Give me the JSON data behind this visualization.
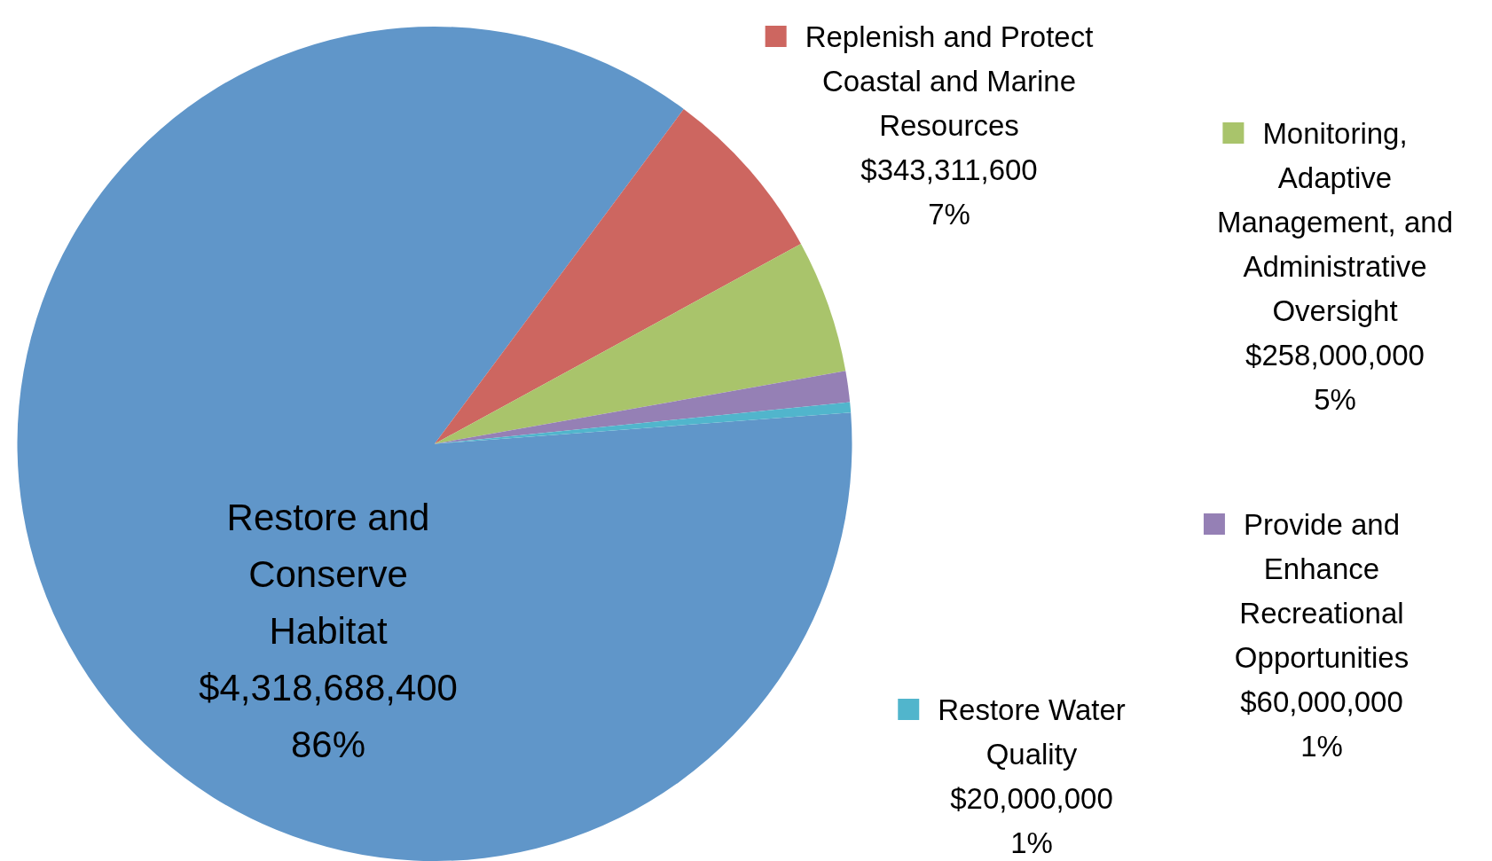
{
  "chart_data": {
    "type": "pie",
    "categories": [
      "Restore and Conserve Habitat",
      "Replenish and Protect Coastal and Marine Resources",
      "Monitoring, Adaptive Management, and Administrative Oversight",
      "Provide and Enhance Recreational Opportunities",
      "Restore Water Quality"
    ],
    "values": [
      4318688400,
      343311600,
      258000000,
      60000000,
      20000000
    ],
    "colors": [
      "#6096c9",
      "#cd6660",
      "#a9c46b",
      "#9580b5",
      "#51b5cc"
    ],
    "value_labels": [
      "$4,318,688,400\n86%",
      "$343,311,600\n7%",
      "$258,000,000\n5%",
      "$60,000,000\n1%",
      "$20,000,000\n1%"
    ],
    "legend": "right"
  }
}
